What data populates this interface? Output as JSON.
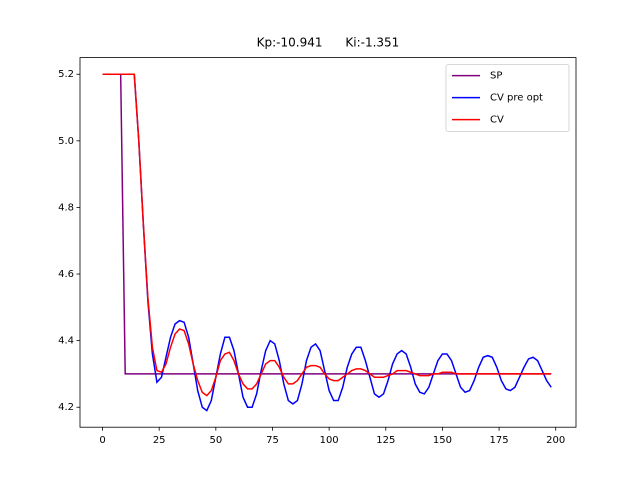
{
  "chart_data": {
    "type": "line",
    "title": "Kp:-10.941      Ki:-1.351",
    "x": [
      0,
      2,
      4,
      6,
      8,
      10,
      12,
      14,
      16,
      18,
      20,
      22,
      24,
      26,
      28,
      30,
      32,
      34,
      36,
      38,
      40,
      42,
      44,
      46,
      48,
      50,
      52,
      54,
      56,
      58,
      60,
      62,
      64,
      66,
      68,
      70,
      72,
      74,
      76,
      78,
      80,
      82,
      84,
      86,
      88,
      90,
      92,
      94,
      96,
      98,
      100,
      102,
      104,
      106,
      108,
      110,
      112,
      114,
      116,
      118,
      120,
      122,
      124,
      126,
      128,
      130,
      132,
      134,
      136,
      138,
      140,
      142,
      144,
      146,
      148,
      150,
      152,
      154,
      156,
      158,
      160,
      162,
      164,
      166,
      168,
      170,
      172,
      174,
      176,
      178,
      180,
      182,
      184,
      186,
      188,
      190,
      192,
      194,
      196,
      198
    ],
    "series": [
      {
        "name": "SP",
        "color": "#800080",
        "values": [
          5.2,
          5.2,
          5.2,
          5.2,
          5.2,
          4.3,
          4.3,
          4.3,
          4.3,
          4.3,
          4.3,
          4.3,
          4.3,
          4.3,
          4.3,
          4.3,
          4.3,
          4.3,
          4.3,
          4.3,
          4.3,
          4.3,
          4.3,
          4.3,
          4.3,
          4.3,
          4.3,
          4.3,
          4.3,
          4.3,
          4.3,
          4.3,
          4.3,
          4.3,
          4.3,
          4.3,
          4.3,
          4.3,
          4.3,
          4.3,
          4.3,
          4.3,
          4.3,
          4.3,
          4.3,
          4.3,
          4.3,
          4.3,
          4.3,
          4.3,
          4.3,
          4.3,
          4.3,
          4.3,
          4.3,
          4.3,
          4.3,
          4.3,
          4.3,
          4.3,
          4.3,
          4.3,
          4.3,
          4.3,
          4.3,
          4.3,
          4.3,
          4.3,
          4.3,
          4.3,
          4.3,
          4.3,
          4.3,
          4.3,
          4.3,
          4.3,
          4.3,
          4.3,
          4.3,
          4.3,
          4.3,
          4.3,
          4.3,
          4.3,
          4.3,
          4.3,
          4.3,
          4.3,
          4.3,
          4.3,
          4.3,
          4.3,
          4.3,
          4.3,
          4.3,
          4.3,
          4.3,
          4.3,
          4.3,
          4.3
        ]
      },
      {
        "name": "CV pre opt",
        "color": "#0000ff",
        "values": [
          5.2,
          5.2,
          5.2,
          5.2,
          5.2,
          5.2,
          5.2,
          5.2,
          5.0,
          4.75,
          4.52,
          4.36,
          4.275,
          4.29,
          4.35,
          4.41,
          4.45,
          4.46,
          4.455,
          4.41,
          4.33,
          4.25,
          4.2,
          4.19,
          4.22,
          4.29,
          4.36,
          4.41,
          4.41,
          4.37,
          4.3,
          4.23,
          4.2,
          4.2,
          4.24,
          4.31,
          4.37,
          4.4,
          4.39,
          4.34,
          4.27,
          4.22,
          4.21,
          4.22,
          4.27,
          4.34,
          4.38,
          4.39,
          4.37,
          4.31,
          4.25,
          4.22,
          4.22,
          4.26,
          4.32,
          4.36,
          4.38,
          4.38,
          4.34,
          4.29,
          4.24,
          4.23,
          4.24,
          4.28,
          4.33,
          4.36,
          4.37,
          4.36,
          4.32,
          4.27,
          4.245,
          4.24,
          4.26,
          4.3,
          4.34,
          4.36,
          4.36,
          4.34,
          4.3,
          4.26,
          4.245,
          4.25,
          4.28,
          4.32,
          4.35,
          4.355,
          4.35,
          4.32,
          4.28,
          4.255,
          4.25,
          4.26,
          4.29,
          4.32,
          4.345,
          4.35,
          4.34,
          4.31,
          4.28,
          4.26
        ]
      },
      {
        "name": "CV",
        "color": "#ff0000",
        "values": [
          5.2,
          5.2,
          5.2,
          5.2,
          5.2,
          5.2,
          5.2,
          5.2,
          5.0,
          4.75,
          4.53,
          4.38,
          4.31,
          4.305,
          4.33,
          4.38,
          4.42,
          4.435,
          4.43,
          4.39,
          4.33,
          4.28,
          4.245,
          4.235,
          4.25,
          4.29,
          4.34,
          4.36,
          4.365,
          4.34,
          4.3,
          4.27,
          4.255,
          4.255,
          4.27,
          4.3,
          4.33,
          4.34,
          4.34,
          4.32,
          4.29,
          4.27,
          4.27,
          4.28,
          4.3,
          4.32,
          4.325,
          4.325,
          4.32,
          4.3,
          4.285,
          4.28,
          4.28,
          4.29,
          4.3,
          4.31,
          4.315,
          4.315,
          4.31,
          4.3,
          4.29,
          4.29,
          4.29,
          4.295,
          4.3,
          4.31,
          4.31,
          4.31,
          4.305,
          4.3,
          4.295,
          4.295,
          4.295,
          4.3,
          4.3,
          4.305,
          4.305,
          4.305,
          4.3,
          4.3,
          4.3,
          4.3,
          4.3,
          4.3,
          4.3,
          4.3,
          4.3,
          4.3,
          4.3,
          4.3,
          4.3,
          4.3,
          4.3,
          4.3,
          4.3,
          4.3,
          4.3,
          4.3,
          4.3,
          4.3
        ]
      }
    ],
    "xlim": [
      -9.95,
      208.95
    ],
    "xticks": [
      0,
      25,
      50,
      75,
      100,
      125,
      150,
      175,
      200
    ],
    "ylim": [
      4.14,
      5.25
    ],
    "yticks": [
      4.2,
      4.4,
      4.6,
      4.8,
      {
        "value": 5,
        "label": "5.0"
      },
      5.2
    ],
    "legend": "upper right"
  }
}
